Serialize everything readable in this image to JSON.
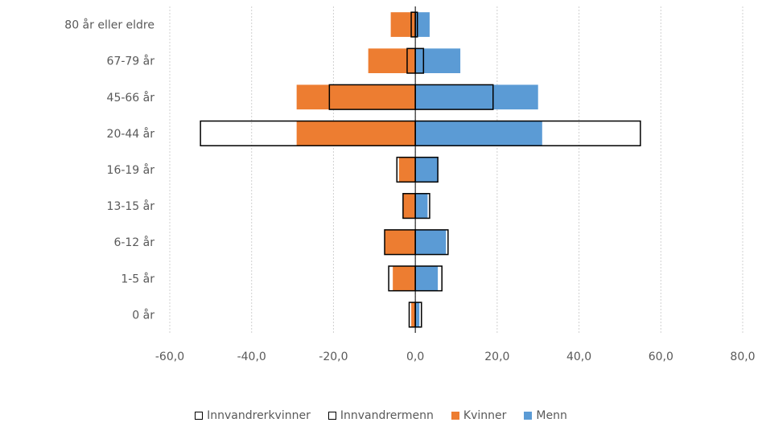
{
  "chart_data": {
    "type": "bar",
    "orientation": "horizontal",
    "chart_style": "population pyramid",
    "categories": [
      "80 år eller eldre",
      "67-79 år",
      "45-66 år",
      "20-44 år",
      "16-19 år",
      "13-15 år",
      "6-12 år",
      "1-5 år",
      "0 år"
    ],
    "series": [
      {
        "name": "Innvandrerkvinner",
        "values": [
          -1.0,
          -2.0,
          -21.0,
          -52.5,
          -4.5,
          -3.0,
          -7.5,
          -6.5,
          -1.5
        ],
        "style": "outline",
        "color": "#000000"
      },
      {
        "name": "Innvandrermenn",
        "values": [
          0.5,
          2.0,
          19.0,
          55.0,
          5.5,
          3.5,
          8.0,
          6.5,
          1.5
        ],
        "style": "outline",
        "color": "#000000"
      },
      {
        "name": "Kvinner",
        "values": [
          -6.0,
          -11.5,
          -29.0,
          -29.0,
          -4.0,
          -3.0,
          -7.5,
          -5.5,
          -1.0
        ],
        "style": "fill",
        "color": "#ED7D31"
      },
      {
        "name": "Menn",
        "values": [
          3.5,
          11.0,
          30.0,
          31.0,
          5.5,
          3.0,
          7.5,
          5.5,
          1.0
        ],
        "style": "fill",
        "color": "#5B9BD5"
      }
    ],
    "x_ticks": [
      "-60,0",
      "-40,0",
      "-20,0",
      "0,0",
      "20,0",
      "40,0",
      "60,0",
      "80,0"
    ],
    "xlim": [
      -60,
      80
    ],
    "title": "",
    "xlabel": "",
    "ylabel": "",
    "grid": "vertical dotted",
    "legend_position": "bottom"
  }
}
